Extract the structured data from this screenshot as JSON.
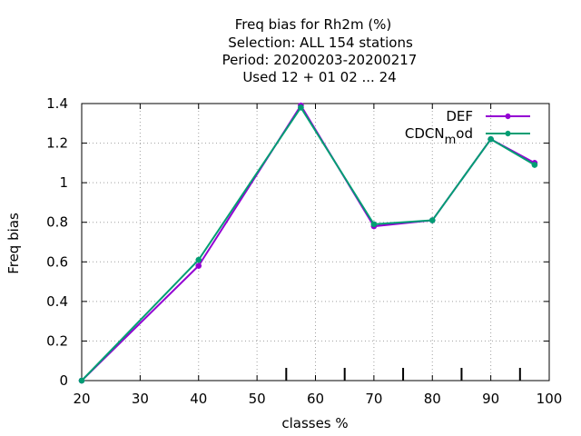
{
  "chart_data": {
    "type": "line",
    "title_lines": [
      "Freq bias  for Rh2m (%)",
      "Selection: ALL    154 stations",
      "Period: 20200203-20200217",
      "Used  12 + 01 02 ... 24"
    ],
    "xlabel": "classes %",
    "ylabel": "Freq bias",
    "xlim": [
      20,
      100
    ],
    "ylim": [
      0,
      1.4
    ],
    "x_ticks": [
      20,
      30,
      40,
      50,
      60,
      70,
      80,
      90,
      100
    ],
    "y_ticks": [
      0,
      0.2,
      0.4,
      0.6,
      0.8,
      1.0,
      1.2,
      1.4
    ],
    "y_tick_labels": [
      "0",
      "0.2",
      "0.4",
      "0.6",
      "0.8",
      "1",
      "1.2",
      "1.4"
    ],
    "grid": true,
    "legend_position": "top-right",
    "series": [
      {
        "name": "DEF",
        "color": "#9400d3",
        "x": [
          20,
          40,
          57.5,
          70,
          80,
          90,
          97.5
        ],
        "y": [
          0.0,
          0.58,
          1.39,
          0.78,
          0.81,
          1.22,
          1.1
        ]
      },
      {
        "name_main": "CDCN",
        "name_sub": "m",
        "name_tail": "od",
        "color": "#009e73",
        "x": [
          20,
          40,
          57.5,
          70,
          80,
          90,
          97.5
        ],
        "y": [
          0.0,
          0.61,
          1.38,
          0.79,
          0.81,
          1.22,
          1.09
        ]
      }
    ],
    "extra_x_tick_marks": [
      55,
      65,
      75,
      85,
      95
    ]
  }
}
